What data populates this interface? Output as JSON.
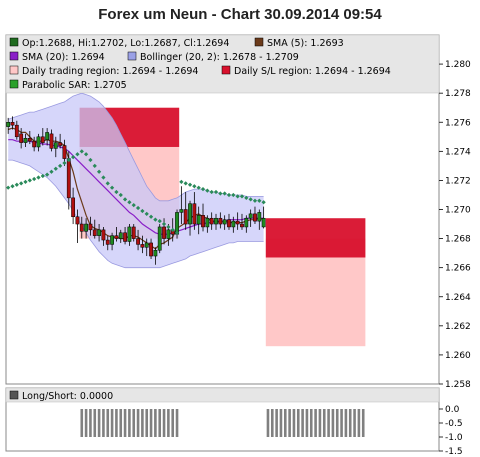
{
  "title": "Forex um Neun - Chart 30.09.2014 09:54",
  "legend": [
    {
      "label": "Op:1.2688, Hi:1.2702, Lo:1.2687, Cl:1.2694",
      "color": "#1f6b1f"
    },
    {
      "label": "SMA (5): 1.2693",
      "color": "#6b3a1a"
    },
    {
      "label": "SMA (20): 1.2694",
      "color": "#8a1ec8"
    },
    {
      "label": "Bollinger (20, 2): 1.2678 - 1.2709",
      "color": "#9aa0e6"
    },
    {
      "label": "Daily trading region: 1.2694 - 1.2694",
      "color": "#ffc8c8"
    },
    {
      "label": "Daily S/L region: 1.2694 - 1.2694",
      "color": "#d8102c"
    },
    {
      "label": "Parabolic SAR: 1.2705",
      "color": "#2aa02a"
    }
  ],
  "colors": {
    "candle_up": "#1f8a1f",
    "candle_down": "#b01010",
    "bollinger_fill": "#c8c8f8",
    "bollinger_line": "#9a9ae0",
    "sma5": "#6b3a1a",
    "sma20": "#8a1ec8",
    "sar": "#2a8a5a",
    "trading_region": "#ffc8c8",
    "sl_region": "#d8102c",
    "longshort_bar": "#808080"
  },
  "chart_data": [
    {
      "type": "candlestick",
      "title": "Forex um Neun - Chart 30.09.2014 09:54",
      "ylim": [
        1.258,
        1.282
      ],
      "yticks": [
        "1.258",
        "1.260",
        "1.262",
        "1.264",
        "1.266",
        "1.268",
        "1.270",
        "1.272",
        "1.274",
        "1.276",
        "1.278",
        "1.280"
      ],
      "candles": [
        [
          1.2757,
          1.2763,
          1.2752,
          1.276
        ],
        [
          1.276,
          1.2764,
          1.2755,
          1.2758
        ],
        [
          1.2758,
          1.2761,
          1.2748,
          1.275
        ],
        [
          1.2752,
          1.2756,
          1.2742,
          1.2746
        ],
        [
          1.2746,
          1.2752,
          1.2743,
          1.2749
        ],
        [
          1.2749,
          1.2754,
          1.2745,
          1.2747
        ],
        [
          1.2747,
          1.275,
          1.274,
          1.2743
        ],
        [
          1.2743,
          1.2752,
          1.274,
          1.275
        ],
        [
          1.275,
          1.2756,
          1.2744,
          1.2746
        ],
        [
          1.2748,
          1.2756,
          1.2744,
          1.2753
        ],
        [
          1.2752,
          1.2755,
          1.274,
          1.2742
        ],
        [
          1.2742,
          1.275,
          1.2736,
          1.2746
        ],
        [
          1.2746,
          1.2752,
          1.2742,
          1.2744
        ],
        [
          1.2744,
          1.2748,
          1.273,
          1.2735
        ],
        [
          1.2735,
          1.274,
          1.27,
          1.2708
        ],
        [
          1.2708,
          1.2715,
          1.269,
          1.2695
        ],
        [
          1.2695,
          1.27,
          1.2677,
          1.269
        ],
        [
          1.269,
          1.2695,
          1.268,
          1.2685
        ],
        [
          1.2685,
          1.2694,
          1.268,
          1.269
        ],
        [
          1.269,
          1.2695,
          1.2682,
          1.2686
        ],
        [
          1.2686,
          1.2693,
          1.268,
          1.2682
        ],
        [
          1.2682,
          1.269,
          1.2678,
          1.2686
        ],
        [
          1.2686,
          1.2688,
          1.2675,
          1.2679
        ],
        [
          1.2679,
          1.2682,
          1.2672,
          1.2676
        ],
        [
          1.2676,
          1.2684,
          1.2672,
          1.2682
        ],
        [
          1.2682,
          1.2688,
          1.2678,
          1.268
        ],
        [
          1.268,
          1.2686,
          1.2677,
          1.2684
        ],
        [
          1.2684,
          1.2688,
          1.2676,
          1.2678
        ],
        [
          1.2678,
          1.269,
          1.2675,
          1.2688
        ],
        [
          1.2688,
          1.269,
          1.2678,
          1.268
        ],
        [
          1.268,
          1.2686,
          1.2672,
          1.2676
        ],
        [
          1.2676,
          1.2682,
          1.267,
          1.2674
        ],
        [
          1.2674,
          1.268,
          1.2668,
          1.2677
        ],
        [
          1.2677,
          1.268,
          1.2666,
          1.2668
        ],
        [
          1.2668,
          1.2674,
          1.2662,
          1.2672
        ],
        [
          1.2672,
          1.269,
          1.267,
          1.2688
        ],
        [
          1.2688,
          1.2694,
          1.2676,
          1.268
        ],
        [
          1.268,
          1.269,
          1.2675,
          1.2686
        ],
        [
          1.2686,
          1.2694,
          1.2678,
          1.2683
        ],
        [
          1.2683,
          1.27,
          1.268,
          1.2698
        ],
        [
          1.2698,
          1.2716,
          1.269,
          1.27
        ],
        [
          1.27,
          1.2712,
          1.2686,
          1.269
        ],
        [
          1.269,
          1.2706,
          1.2682,
          1.2704
        ],
        [
          1.2704,
          1.2712,
          1.2686,
          1.269
        ],
        [
          1.269,
          1.2702,
          1.2683,
          1.2696
        ],
        [
          1.2696,
          1.2704,
          1.2685,
          1.2688
        ],
        [
          1.2688,
          1.2696,
          1.2684,
          1.2694
        ],
        [
          1.2694,
          1.2698,
          1.2686,
          1.269
        ],
        [
          1.269,
          1.2697,
          1.2686,
          1.2694
        ],
        [
          1.2694,
          1.2698,
          1.2687,
          1.269
        ],
        [
          1.269,
          1.2696,
          1.2686,
          1.2693
        ],
        [
          1.2693,
          1.2697,
          1.2686,
          1.2688
        ],
        [
          1.2688,
          1.2695,
          1.2684,
          1.2692
        ],
        [
          1.2692,
          1.2698,
          1.2686,
          1.269
        ],
        [
          1.269,
          1.2697,
          1.2686,
          1.2688
        ],
        [
          1.2688,
          1.2696,
          1.2684,
          1.2694
        ],
        [
          1.2694,
          1.27,
          1.2688,
          1.2697
        ],
        [
          1.2697,
          1.2702,
          1.269,
          1.2692
        ],
        [
          1.2692,
          1.27,
          1.2686,
          1.2698
        ],
        [
          1.2688,
          1.2702,
          1.2687,
          1.2694
        ]
      ],
      "sma5": [
        1.2755,
        1.2756,
        1.2755,
        1.2753,
        1.2753,
        1.275,
        1.2747,
        1.2747,
        1.2747,
        1.2748,
        1.2747,
        1.2747,
        1.2746,
        1.2744,
        1.2735,
        1.2726,
        1.2714,
        1.2705,
        1.2696,
        1.2689,
        1.2687,
        1.2686,
        1.2684,
        1.2682,
        1.2681,
        1.2681,
        1.268,
        1.268,
        1.2682,
        1.2682,
        1.2681,
        1.2679,
        1.2677,
        1.2675,
        1.2673,
        1.2676,
        1.2677,
        1.2679,
        1.2681,
        1.2687,
        1.2689,
        1.2691,
        1.2694,
        1.2696,
        1.2697,
        1.2695,
        1.2694,
        1.2692,
        1.2692,
        1.2691,
        1.2692,
        1.2691,
        1.2691,
        1.2691,
        1.2691,
        1.2692,
        1.2693,
        1.2693,
        1.2694,
        1.2693
      ],
      "sma20": [
        1.2748,
        1.2748,
        1.2747,
        1.2747,
        1.2747,
        1.2747,
        1.2746,
        1.2746,
        1.2745,
        1.2745,
        1.2744,
        1.2744,
        1.2743,
        1.2742,
        1.274,
        1.2737,
        1.2734,
        1.2731,
        1.2728,
        1.2725,
        1.2722,
        1.2719,
        1.2716,
        1.2713,
        1.271,
        1.2707,
        1.2704,
        1.2701,
        1.2698,
        1.2696,
        1.2693,
        1.269,
        1.2688,
        1.2686,
        1.2684,
        1.2683,
        1.2683,
        1.2683,
        1.2684,
        1.2685,
        1.2686,
        1.2687,
        1.2688,
        1.2689,
        1.269,
        1.269,
        1.2691,
        1.2691,
        1.2692,
        1.2692,
        1.2692,
        1.2693,
        1.2693,
        1.2693,
        1.2693,
        1.2694,
        1.2694,
        1.2694,
        1.2694,
        1.2694
      ],
      "boll_upper": [
        1.2762,
        1.2763,
        1.2764,
        1.2765,
        1.2766,
        1.2767,
        1.2767,
        1.2768,
        1.2769,
        1.277,
        1.2771,
        1.2772,
        1.2773,
        1.2774,
        1.2776,
        1.2778,
        1.2779,
        1.278,
        1.2779,
        1.2778,
        1.2776,
        1.2774,
        1.2771,
        1.2767,
        1.2763,
        1.2758,
        1.2752,
        1.2746,
        1.274,
        1.2734,
        1.2728,
        1.2722,
        1.2716,
        1.2712,
        1.2708,
        1.2706,
        1.2706,
        1.2706,
        1.2707,
        1.2708,
        1.271,
        1.2712,
        1.2713,
        1.2714,
        1.2714,
        1.2714,
        1.2713,
        1.2712,
        1.2712,
        1.2711,
        1.2711,
        1.271,
        1.271,
        1.271,
        1.271,
        1.2709,
        1.2709,
        1.2709,
        1.2709,
        1.2709
      ],
      "boll_lower": [
        1.2734,
        1.2734,
        1.2733,
        1.2732,
        1.2731,
        1.273,
        1.2728,
        1.2726,
        1.2724,
        1.2722,
        1.2719,
        1.2716,
        1.2712,
        1.2708,
        1.2704,
        1.2699,
        1.2694,
        1.2689,
        1.2684,
        1.2679,
        1.2675,
        1.2671,
        1.2668,
        1.2665,
        1.2663,
        1.2662,
        1.2661,
        1.266,
        1.266,
        1.266,
        1.266,
        1.266,
        1.266,
        1.266,
        1.266,
        1.266,
        1.2661,
        1.2662,
        1.2663,
        1.2664,
        1.2665,
        1.2666,
        1.2668,
        1.2669,
        1.267,
        1.2671,
        1.2672,
        1.2673,
        1.2674,
        1.2675,
        1.2676,
        1.2677,
        1.2677,
        1.2678,
        1.2678,
        1.2678,
        1.2678,
        1.2678,
        1.2678,
        1.2678
      ],
      "sar": [
        1.2715,
        1.2716,
        1.2717,
        1.2718,
        1.2719,
        1.272,
        1.2721,
        1.2722,
        1.2723,
        1.2724,
        1.2726,
        1.2728,
        1.273,
        1.2732,
        1.2734,
        1.2736,
        1.2738,
        1.274,
        1.2738,
        1.2734,
        1.273,
        1.2726,
        1.2722,
        1.2718,
        1.2715,
        1.2712,
        1.271,
        1.2707,
        1.2705,
        1.2703,
        1.2701,
        1.2699,
        1.2697,
        1.2695,
        1.2693,
        1.2692,
        1.269,
        1.2688,
        1.2686,
        1.2684,
        1.2719,
        1.2718,
        1.2717,
        1.2716,
        1.2715,
        1.2714,
        1.2713,
        1.2712,
        1.2712,
        1.2711,
        1.2711,
        1.271,
        1.271,
        1.2709,
        1.2709,
        1.2708,
        1.2707,
        1.2706,
        1.2706,
        1.2705
      ],
      "regions": [
        {
          "kind": "trading",
          "i0": 17,
          "i1": 40,
          "y0": 1.268,
          "y1": 1.2743
        },
        {
          "kind": "sl",
          "i0": 17,
          "i1": 40,
          "y0": 1.2743,
          "y1": 1.277
        },
        {
          "kind": "trading",
          "i0": 60,
          "i1": 83,
          "y0": 1.2606,
          "y1": 1.268
        },
        {
          "kind": "sl",
          "i0": 60,
          "i1": 83,
          "y0": 1.2667,
          "y1": 1.2694
        }
      ],
      "x_count": 100
    },
    {
      "type": "bar",
      "title": "Long/Short: 0.0000",
      "ylim": [
        -1.5,
        0.25
      ],
      "yticks": [
        "0.0",
        "-0.5",
        "-1.0",
        "-1.5"
      ],
      "bars": [
        {
          "i0": 17,
          "i1": 40,
          "value": -1.0
        },
        {
          "i0": 60,
          "i1": 83,
          "value": -1.0
        }
      ]
    }
  ]
}
